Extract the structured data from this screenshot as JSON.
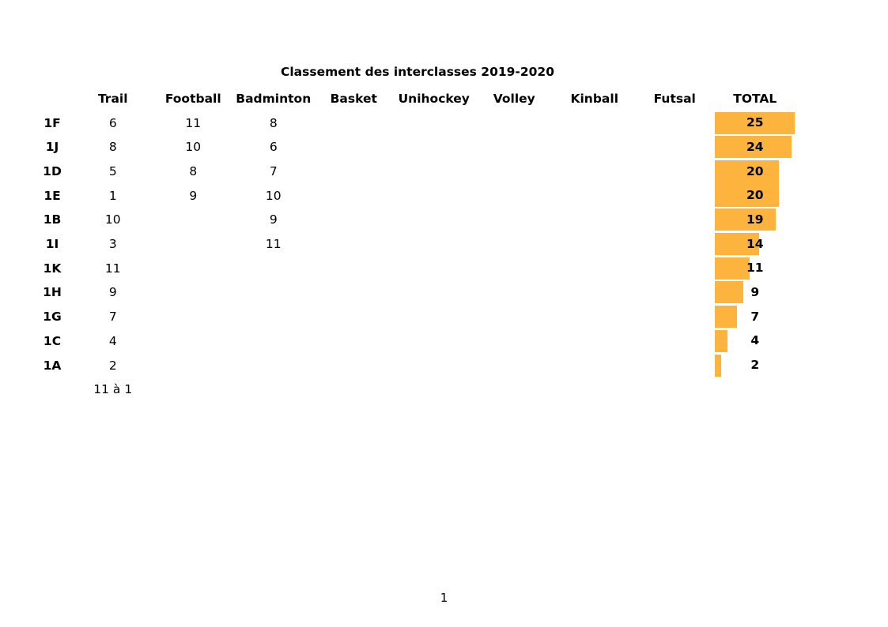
{
  "title": "Classement des interclasses 2019-2020",
  "page_number": "1",
  "colors": {
    "bar": "#FCB43F",
    "text": "#000000",
    "background": "#FFFFFF"
  },
  "table": {
    "columns": [
      "Trail",
      "Football",
      "Badminton",
      "Basket",
      "Unihockey",
      "Volley",
      "Kinball",
      "Futsal",
      "TOTAL"
    ],
    "rows": [
      {
        "label": "1F",
        "values": [
          "6",
          "11",
          "8",
          "",
          "",
          "",
          "",
          ""
        ],
        "total": 25
      },
      {
        "label": "1J",
        "values": [
          "8",
          "10",
          "6",
          "",
          "",
          "",
          "",
          ""
        ],
        "total": 24
      },
      {
        "label": "1D",
        "values": [
          "5",
          "8",
          "7",
          "",
          "",
          "",
          "",
          ""
        ],
        "total": 20
      },
      {
        "label": "1E",
        "values": [
          "1",
          "9",
          "10",
          "",
          "",
          "",
          "",
          ""
        ],
        "total": 20
      },
      {
        "label": "1B",
        "values": [
          "10",
          "",
          "9",
          "",
          "",
          "",
          "",
          ""
        ],
        "total": 19
      },
      {
        "label": "1I",
        "values": [
          "3",
          "",
          "11",
          "",
          "",
          "",
          "",
          ""
        ],
        "total": 14
      },
      {
        "label": "1K",
        "values": [
          "11",
          "",
          "",
          "",
          "",
          "",
          "",
          ""
        ],
        "total": 11
      },
      {
        "label": "1H",
        "values": [
          "9",
          "",
          "",
          "",
          "",
          "",
          "",
          ""
        ],
        "total": 9
      },
      {
        "label": "1G",
        "values": [
          "7",
          "",
          "",
          "",
          "",
          "",
          "",
          ""
        ],
        "total": 7
      },
      {
        "label": "1C",
        "values": [
          "4",
          "",
          "",
          "",
          "",
          "",
          "",
          ""
        ],
        "total": 4
      },
      {
        "label": "1A",
        "values": [
          "2",
          "",
          "",
          "",
          "",
          "",
          "",
          ""
        ],
        "total": 2
      }
    ],
    "footer_note": "11 à 1"
  },
  "chart_data": {
    "type": "bar",
    "orientation": "horizontal",
    "title": "Classement des interclasses 2019-2020",
    "categories": [
      "1F",
      "1J",
      "1D",
      "1E",
      "1B",
      "1I",
      "1K",
      "1H",
      "1G",
      "1C",
      "1A"
    ],
    "series": [
      {
        "name": "Trail",
        "values": [
          6,
          8,
          5,
          1,
          10,
          3,
          11,
          9,
          7,
          4,
          2
        ]
      },
      {
        "name": "Football",
        "values": [
          11,
          10,
          8,
          9,
          null,
          null,
          null,
          null,
          null,
          null,
          null
        ]
      },
      {
        "name": "Badminton",
        "values": [
          8,
          6,
          7,
          10,
          9,
          11,
          null,
          null,
          null,
          null,
          null
        ]
      },
      {
        "name": "Basket",
        "values": [
          null,
          null,
          null,
          null,
          null,
          null,
          null,
          null,
          null,
          null,
          null
        ]
      },
      {
        "name": "Unihockey",
        "values": [
          null,
          null,
          null,
          null,
          null,
          null,
          null,
          null,
          null,
          null,
          null
        ]
      },
      {
        "name": "Volley",
        "values": [
          null,
          null,
          null,
          null,
          null,
          null,
          null,
          null,
          null,
          null,
          null
        ]
      },
      {
        "name": "Kinball",
        "values": [
          null,
          null,
          null,
          null,
          null,
          null,
          null,
          null,
          null,
          null,
          null
        ]
      },
      {
        "name": "Futsal",
        "values": [
          null,
          null,
          null,
          null,
          null,
          null,
          null,
          null,
          null,
          null,
          null
        ]
      },
      {
        "name": "TOTAL",
        "values": [
          25,
          24,
          20,
          20,
          19,
          14,
          11,
          9,
          7,
          4,
          2
        ]
      }
    ],
    "bar_series": "TOTAL",
    "bar_color": "#FCB43F",
    "xlim": [
      0,
      25
    ],
    "grid": false,
    "legend": false,
    "note": "11 à 1"
  }
}
